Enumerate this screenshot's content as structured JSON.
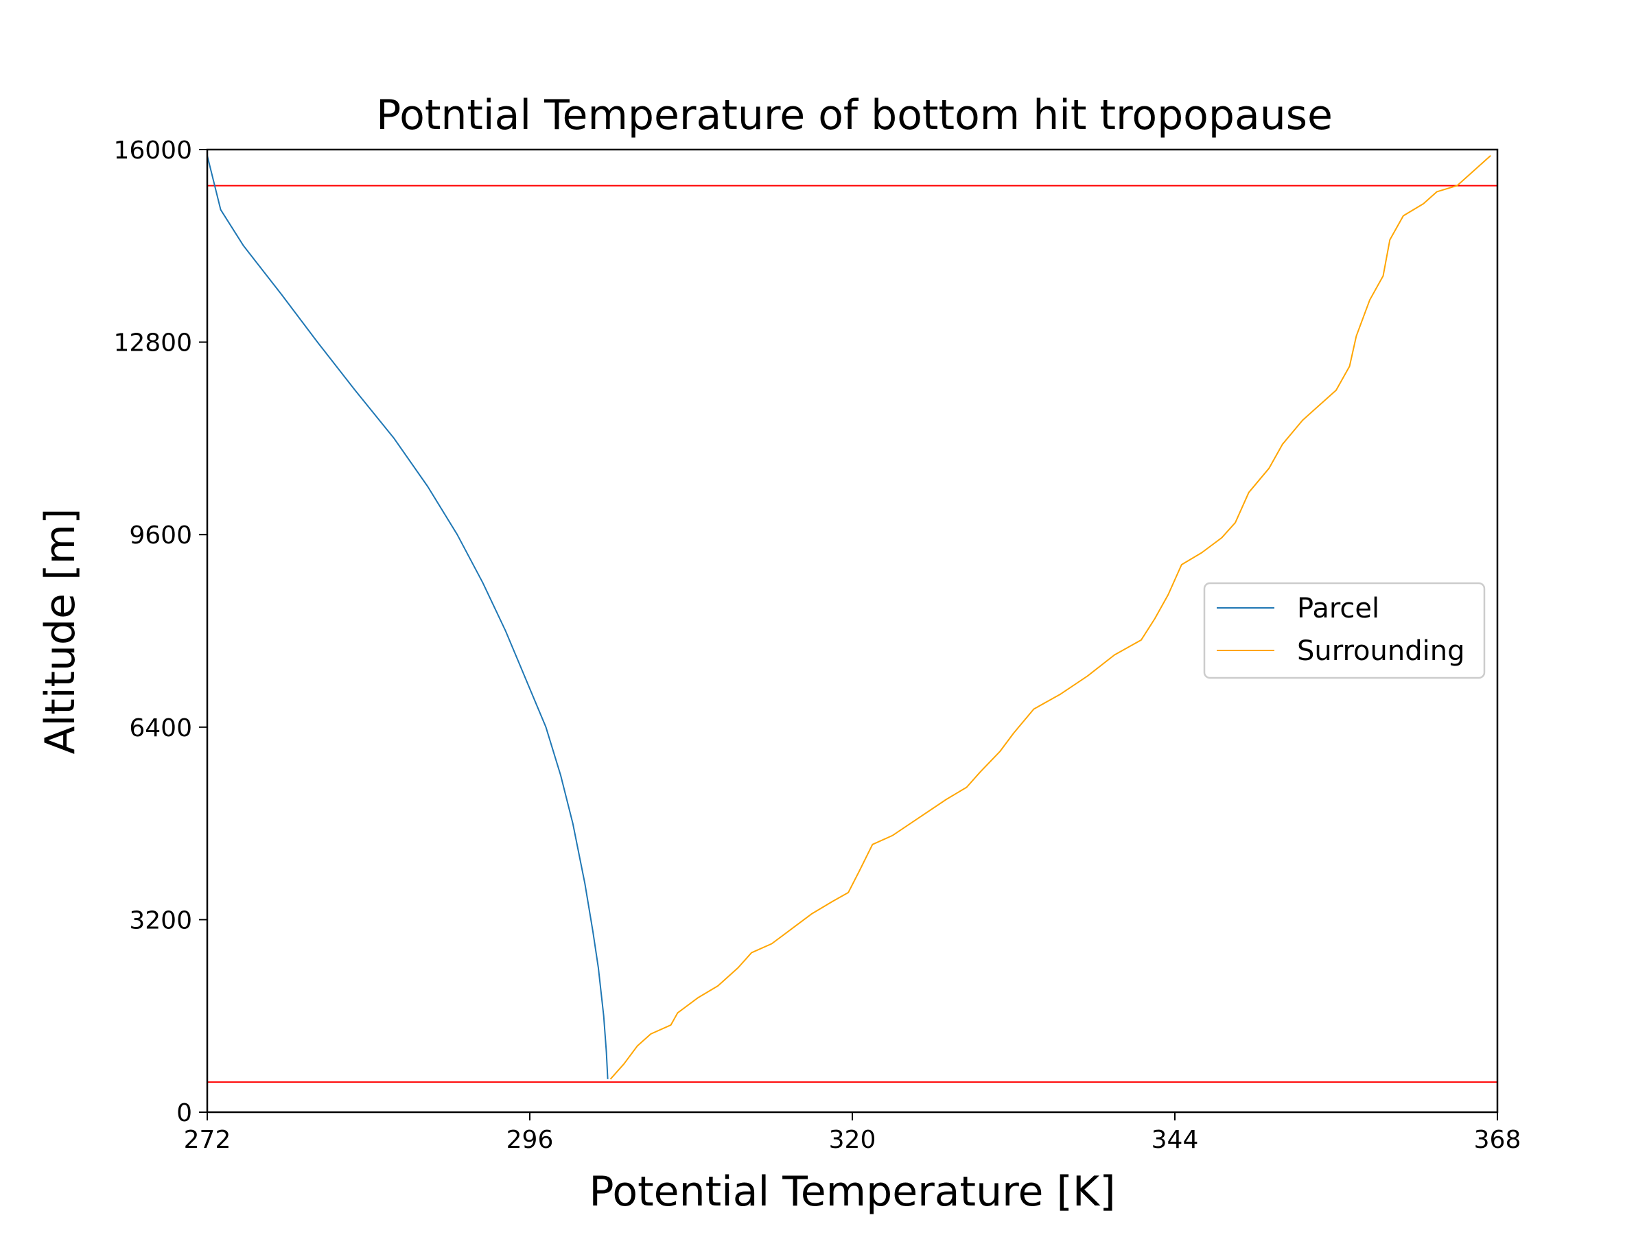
{
  "chart_data": {
    "type": "line",
    "title": "Potntial Temperature of bottom hit tropopause",
    "xlabel": "Potential Temperature [K]",
    "ylabel": "Altitude [m]",
    "xlim": [
      272,
      368
    ],
    "ylim": [
      0,
      16000
    ],
    "xticks": [
      "272",
      "296",
      "320",
      "344",
      "368"
    ],
    "yticks": [
      "0",
      "3200",
      "6400",
      "9600",
      "12800",
      "16000"
    ],
    "grid": false,
    "legend_position": "center-right",
    "series": [
      {
        "name": "Parcel",
        "color": "#1f77b4",
        "points": [
          [
            301.8,
            550
          ],
          [
            301.7,
            1000
          ],
          [
            301.5,
            1600
          ],
          [
            301.1,
            2400
          ],
          [
            300.7,
            3000
          ],
          [
            300.1,
            3800
          ],
          [
            299.2,
            4800
          ],
          [
            298.3,
            5600
          ],
          [
            297.2,
            6400
          ],
          [
            295.7,
            7200
          ],
          [
            294.2,
            8000
          ],
          [
            292.5,
            8800
          ],
          [
            290.6,
            9600
          ],
          [
            288.4,
            10400
          ],
          [
            285.9,
            11200
          ],
          [
            283.0,
            12000
          ],
          [
            280.2,
            12800
          ],
          [
            277.5,
            13600
          ],
          [
            274.7,
            14400
          ],
          [
            273.0,
            15000
          ],
          [
            272.0,
            15900
          ]
        ]
      },
      {
        "name": "Surrounding",
        "color": "#ffa500",
        "points": [
          [
            302.0,
            550
          ],
          [
            303.0,
            800
          ],
          [
            304.0,
            1100
          ],
          [
            305.0,
            1300
          ],
          [
            306.5,
            1450
          ],
          [
            307.0,
            1650
          ],
          [
            308.5,
            1900
          ],
          [
            310.0,
            2100
          ],
          [
            311.5,
            2400
          ],
          [
            312.5,
            2650
          ],
          [
            314.0,
            2800
          ],
          [
            315.5,
            3050
          ],
          [
            317.0,
            3300
          ],
          [
            318.5,
            3500
          ],
          [
            319.7,
            3650
          ],
          [
            320.5,
            4000
          ],
          [
            321.5,
            4450
          ],
          [
            323.0,
            4600
          ],
          [
            325.0,
            4900
          ],
          [
            327.0,
            5200
          ],
          [
            328.5,
            5400
          ],
          [
            329.5,
            5650
          ],
          [
            331.0,
            6000
          ],
          [
            332.0,
            6300
          ],
          [
            333.5,
            6700
          ],
          [
            335.5,
            6950
          ],
          [
            337.5,
            7250
          ],
          [
            339.5,
            7600
          ],
          [
            341.5,
            7850
          ],
          [
            342.5,
            8200
          ],
          [
            343.5,
            8600
          ],
          [
            344.5,
            9100
          ],
          [
            346.0,
            9300
          ],
          [
            347.5,
            9550
          ],
          [
            348.5,
            9800
          ],
          [
            349.5,
            10300
          ],
          [
            351.0,
            10700
          ],
          [
            352.0,
            11100
          ],
          [
            353.5,
            11500
          ],
          [
            355.0,
            11800
          ],
          [
            356.0,
            12000
          ],
          [
            357.0,
            12400
          ],
          [
            357.5,
            12900
          ],
          [
            358.5,
            13500
          ],
          [
            359.5,
            13900
          ],
          [
            360.0,
            14500
          ],
          [
            361.0,
            14900
          ],
          [
            362.5,
            15100
          ],
          [
            363.5,
            15300
          ],
          [
            365.0,
            15400
          ],
          [
            366.0,
            15600
          ],
          [
            367.5,
            15900
          ]
        ]
      }
    ],
    "hlines": [
      {
        "y": 500,
        "color": "#ff0000"
      },
      {
        "y": 15400,
        "color": "#ff0000"
      }
    ]
  }
}
